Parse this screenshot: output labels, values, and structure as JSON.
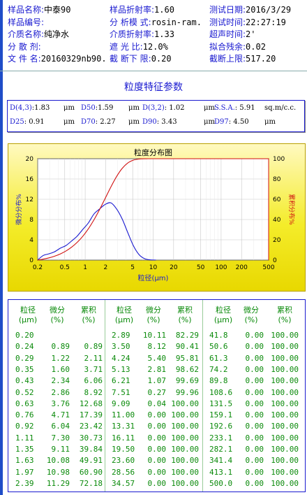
{
  "header": {
    "rows": [
      [
        {
          "k": "样品名称:",
          "v": "中泰90"
        },
        {
          "k": "样品折射率:",
          "v": "1.60"
        },
        {
          "k": "测试日期:",
          "v": "2016/3/29"
        }
      ],
      [
        {
          "k": "样品编号:",
          "v": ""
        },
        {
          "k": "分 析模 式:",
          "v": "rosin-ram."
        },
        {
          "k": "测试时间:",
          "v": "22:27:19"
        }
      ],
      [
        {
          "k": "介质名称:",
          "v": "纯净水"
        },
        {
          "k": "介质折射率:",
          "v": "1.33"
        },
        {
          "k": "超声时间:",
          "v": "2'"
        }
      ],
      [
        {
          "k": "分 散 剂:",
          "v": ""
        },
        {
          "k": "遮  光  比:",
          "v": "12.0%"
        },
        {
          "k": "拟合残余:",
          "v": "0.02"
        }
      ],
      [
        {
          "k": "文 件 名:",
          "v": "20160329nb90."
        },
        {
          "k": "截 断下 限:",
          "v": "0.20"
        },
        {
          "k": "截断上限:",
          "v": "517.20"
        }
      ]
    ]
  },
  "params": {
    "title": "粒度特征参数",
    "row1": [
      {
        "k": "D(4,3)",
        "v": ":1.83",
        "u": "μm"
      },
      {
        "k": "D50",
        "v": ":1.59",
        "u": "μm"
      },
      {
        "k": "D(3,2)",
        "v": ": 1.02",
        "u": "μm"
      },
      {
        "k": "S.S.A.",
        "v": ": 5.91",
        "u": "sq.m/c.c."
      }
    ],
    "row2": [
      {
        "k": "D25",
        "v": ": 0.91",
        "u": "μm"
      },
      {
        "k": "D70",
        "v": ": 2.27",
        "u": "μm"
      },
      {
        "k": "D90",
        "v": ": 3.43",
        "u": "μm"
      },
      {
        "k": "D97",
        "v": ": 4.50",
        "u": "μm"
      }
    ]
  },
  "chart_data": {
    "type": "line",
    "title": "粒度分布图",
    "xlabel": "粒径(μm)",
    "ylabel_left": "微分分布%",
    "ylabel_right": "累积分布%",
    "x_scale": "log",
    "x_ticks": [
      "0.2",
      "0.5",
      "1",
      "2",
      "5",
      "10",
      "20",
      "50",
      "100",
      "200",
      "500"
    ],
    "x_tick_values": [
      0.2,
      0.5,
      1,
      2,
      5,
      10,
      20,
      50,
      100,
      200,
      500
    ],
    "y_left_ticks": [
      0,
      4,
      8,
      12,
      16,
      20
    ],
    "y_right_ticks": [
      0,
      20,
      40,
      60,
      80,
      100
    ],
    "ylim_left": [
      0,
      20
    ],
    "ylim_right": [
      0,
      100
    ],
    "grid": true,
    "colors": {
      "differential": "#1a1ad0",
      "cumulative": "#d01010",
      "axis_right": "#d01010",
      "axis_left": "#1a1ad0"
    },
    "series": [
      {
        "name": "微分",
        "axis": "left",
        "x": [
          0.2,
          0.24,
          0.29,
          0.35,
          0.43,
          0.52,
          0.63,
          0.76,
          0.92,
          1.11,
          1.35,
          1.63,
          1.97,
          2.39,
          2.89,
          3.5,
          4.24,
          5.13,
          6.21,
          7.51,
          9.09,
          11.0
        ],
        "values": [
          0.0,
          0.89,
          1.22,
          1.6,
          2.34,
          2.86,
          3.76,
          4.71,
          6.04,
          7.3,
          9.11,
          10.08,
          10.98,
          11.29,
          10.11,
          8.12,
          5.4,
          2.81,
          1.07,
          0.27,
          0.04,
          0.0
        ]
      },
      {
        "name": "累积",
        "axis": "right",
        "x": [
          0.2,
          0.24,
          0.29,
          0.35,
          0.43,
          0.52,
          0.63,
          0.76,
          0.92,
          1.11,
          1.35,
          1.63,
          1.97,
          2.39,
          2.89,
          3.5,
          4.24,
          5.13,
          6.21,
          7.51,
          9.09,
          11.0
        ],
        "values": [
          0.0,
          0.89,
          2.11,
          3.71,
          6.06,
          8.92,
          12.68,
          17.39,
          23.42,
          30.73,
          39.84,
          49.91,
          60.9,
          72.18,
          82.29,
          90.41,
          95.81,
          98.62,
          99.69,
          99.96,
          100.0,
          100.0
        ]
      }
    ]
  },
  "table": {
    "headers": [
      [
        "粒径",
        "(μm)"
      ],
      [
        "微分",
        "(%)"
      ],
      [
        "累积",
        "(%)"
      ],
      [
        "粒径",
        "(μm)"
      ],
      [
        "微分",
        "(%)"
      ],
      [
        "累积",
        "(%)"
      ],
      [
        "粒径",
        "(μm)"
      ],
      [
        "微分",
        "(%)"
      ],
      [
        "累积",
        "(%)"
      ]
    ],
    "rows": [
      [
        "0.20",
        "",
        "",
        "2.89",
        "10.11",
        "82.29",
        "41.8",
        "0.00",
        "100.00"
      ],
      [
        "0.24",
        "0.89",
        "0.89",
        "3.50",
        "8.12",
        "90.41",
        "50.6",
        "0.00",
        "100.00"
      ],
      [
        "0.29",
        "1.22",
        "2.11",
        "4.24",
        "5.40",
        "95.81",
        "61.3",
        "0.00",
        "100.00"
      ],
      [
        "0.35",
        "1.60",
        "3.71",
        "5.13",
        "2.81",
        "98.62",
        "74.2",
        "0.00",
        "100.00"
      ],
      [
        "0.43",
        "2.34",
        "6.06",
        "6.21",
        "1.07",
        "99.69",
        "89.8",
        "0.00",
        "100.00"
      ],
      [
        "0.52",
        "2.86",
        "8.92",
        "7.51",
        "0.27",
        "99.96",
        "108.6",
        "0.00",
        "100.00"
      ],
      [
        "0.63",
        "3.76",
        "12.68",
        "9.09",
        "0.04",
        "100.00",
        "131.5",
        "0.00",
        "100.00"
      ],
      [
        "0.76",
        "4.71",
        "17.39",
        "11.00",
        "0.00",
        "100.00",
        "159.1",
        "0.00",
        "100.00"
      ],
      [
        "0.92",
        "6.04",
        "23.42",
        "13.31",
        "0.00",
        "100.00",
        "192.6",
        "0.00",
        "100.00"
      ],
      [
        "1.11",
        "7.30",
        "30.73",
        "16.11",
        "0.00",
        "100.00",
        "233.1",
        "0.00",
        "100.00"
      ],
      [
        "1.35",
        "9.11",
        "39.84",
        "19.50",
        "0.00",
        "100.00",
        "282.1",
        "0.00",
        "100.00"
      ],
      [
        "1.63",
        "10.08",
        "49.91",
        "23.60",
        "0.00",
        "100.00",
        "341.4",
        "0.00",
        "100.00"
      ],
      [
        "1.97",
        "10.98",
        "60.90",
        "28.56",
        "0.00",
        "100.00",
        "413.1",
        "0.00",
        "100.00"
      ],
      [
        "2.39",
        "11.29",
        "72.18",
        "34.57",
        "0.00",
        "100.00",
        "500.0",
        "0.00",
        "100.00"
      ]
    ]
  }
}
